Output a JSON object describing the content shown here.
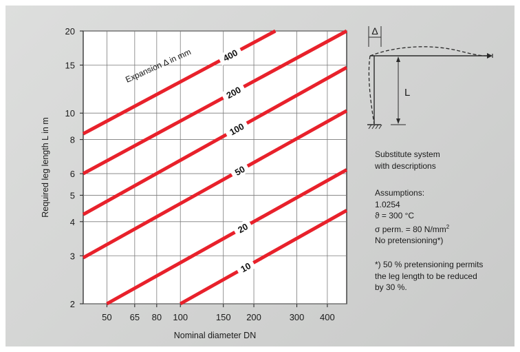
{
  "chart_data": {
    "type": "line",
    "title": "",
    "xlabel": "Nominal diameter DN",
    "ylabel": "Required leg length L in m",
    "x_scale": "log",
    "y_scale": "log",
    "xlim": [
      40,
      480
    ],
    "ylim": [
      2,
      20
    ],
    "x_ticks": [
      "50",
      "65",
      "80",
      "100",
      "150",
      "200",
      "300",
      "400"
    ],
    "x_tick_values": [
      50,
      65,
      80,
      100,
      150,
      200,
      300,
      400
    ],
    "y_ticks": [
      "2",
      "3",
      "4",
      "5",
      "6",
      "8",
      "10",
      "15",
      "20"
    ],
    "y_tick_values": [
      2,
      3,
      4,
      5,
      6,
      8,
      10,
      15,
      20
    ],
    "grid": true,
    "legend_title": "Expansion Δ in mm",
    "series": [
      {
        "name": "400",
        "label_at": [
          160,
          13.4
        ],
        "points": [
          [
            40,
            8.4
          ],
          [
            245,
            20
          ]
        ]
      },
      {
        "name": "200",
        "label_at": [
          165,
          9.5
        ],
        "points": [
          [
            40,
            6.0
          ],
          [
            480,
            20
          ]
        ]
      },
      {
        "name": "100",
        "label_at": [
          170,
          6.8
        ],
        "points": [
          [
            40,
            4.25
          ],
          [
            480,
            14.7
          ]
        ]
      },
      {
        "name": "50",
        "label_at": [
          175,
          4.9
        ],
        "points": [
          [
            40,
            2.95
          ],
          [
            480,
            10.2
          ]
        ]
      },
      {
        "name": "20",
        "label_at": [
          180,
          3.3
        ],
        "points": [
          [
            50,
            2.0
          ],
          [
            480,
            6.2
          ]
        ]
      },
      {
        "name": "10",
        "label_at": [
          185,
          2.3
        ],
        "points": [
          [
            100,
            2.0
          ],
          [
            480,
            4.4
          ]
        ]
      }
    ]
  },
  "diagram": {
    "delta_label": "Δ",
    "length_label": "L"
  },
  "notes": {
    "substitute_lines": [
      "Substitute system",
      "with descriptions"
    ],
    "assumptions_title": "Assumptions:",
    "material": "1.0254",
    "temperature": "ϑ = 300 °C",
    "stress_prefix": "σ perm. = 80 N/mm",
    "stress_superscript": "2",
    "pretension": "No pretensioning*)",
    "footnote_lines": [
      "*) 50 % pretensioning permits",
      "the leg length to be reduced",
      "by 30 %."
    ]
  },
  "colors": {
    "curve": "#e8212b",
    "grid": "#7a7a7a",
    "frame": "#1a1a1a"
  }
}
